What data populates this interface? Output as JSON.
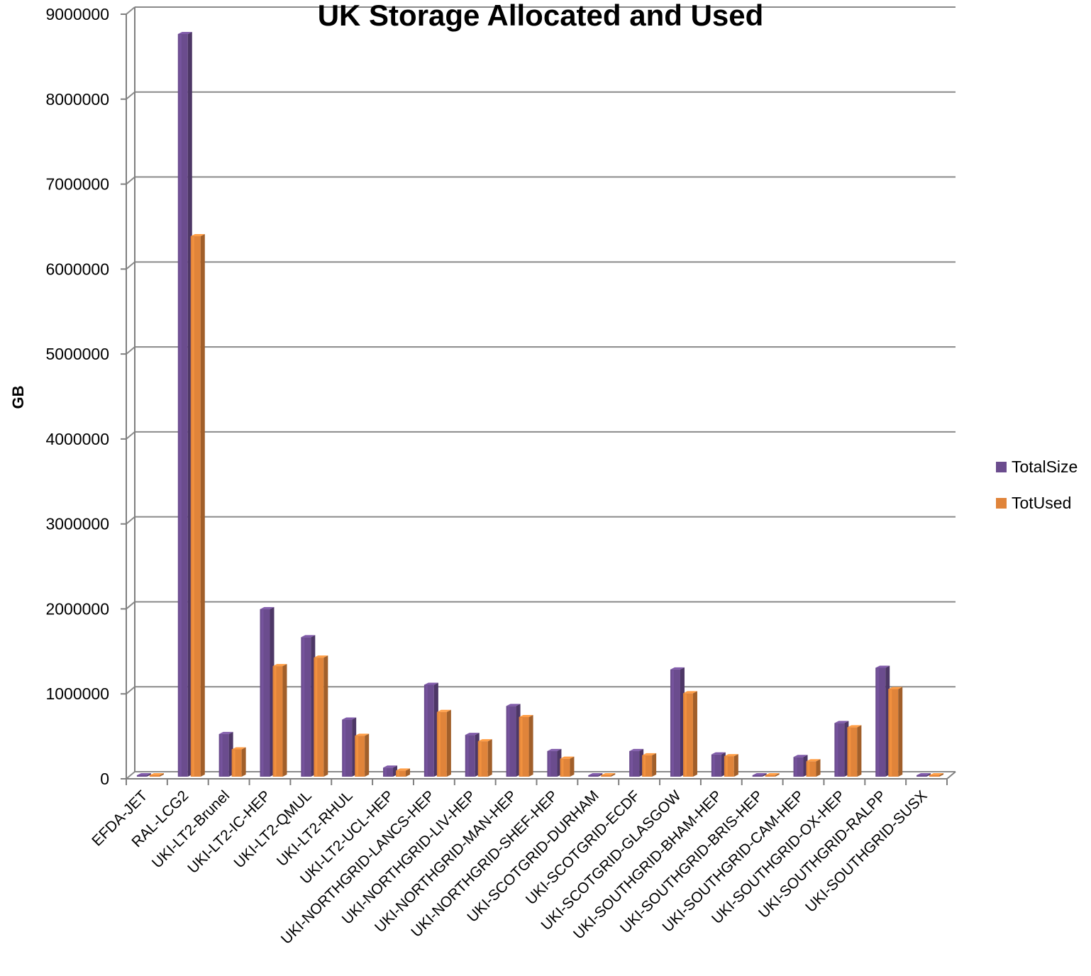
{
  "chart_data": {
    "type": "bar",
    "title": "UK Storage Allocated and Used",
    "xlabel": "",
    "ylabel": "GB",
    "ylim": [
      0,
      9000000
    ],
    "yticks": [
      0,
      1000000,
      2000000,
      3000000,
      4000000,
      5000000,
      6000000,
      7000000,
      8000000,
      9000000
    ],
    "grid": true,
    "legend_position": "right",
    "categories": [
      "EFDA-JET",
      "RAL-LCG2",
      "UKI-LT2-Brunel",
      "UKI-LT2-IC-HEP",
      "UKI-LT2-QMUL",
      "UKI-LT2-RHUL",
      "UKI-LT2-UCL-HEP",
      "UKI-NORTHGRID-LANCS-HEP",
      "UKI-NORTHGRID-LIV-HEP",
      "UKI-NORTHGRID-MAN-HEP",
      "UKI-NORTHGRID-SHEF-HEP",
      "UKI-SCOTGRID-DURHAM",
      "UKI-SCOTGRID-ECDF",
      "UKI-SCOTGRID-GLASGOW",
      "UKI-SOUTHGRID-BHAM-HEP",
      "UKI-SOUTHGRID-BRIS-HEP",
      "UKI-SOUTHGRID-CAM-HEP",
      "UKI-SOUTHGRID-OX-HEP",
      "UKI-SOUTHGRID-RALPP",
      "UKI-SOUTHGRID-SUSX"
    ],
    "series": [
      {
        "name": "TotalSize",
        "color": "#6b4c8e",
        "values": [
          10000,
          8800000,
          560000,
          2030000,
          1700000,
          730000,
          165000,
          1140000,
          550000,
          890000,
          360000,
          30000,
          360000,
          1320000,
          320000,
          10000,
          290000,
          690000,
          1340000,
          60000
        ]
      },
      {
        "name": "TotUsed",
        "color": "#e0843a",
        "values": [
          10000,
          6420000,
          380000,
          1360000,
          1460000,
          540000,
          130000,
          820000,
          475000,
          760000,
          270000,
          20000,
          310000,
          1040000,
          300000,
          8000,
          240000,
          640000,
          1090000,
          15000
        ]
      }
    ]
  }
}
